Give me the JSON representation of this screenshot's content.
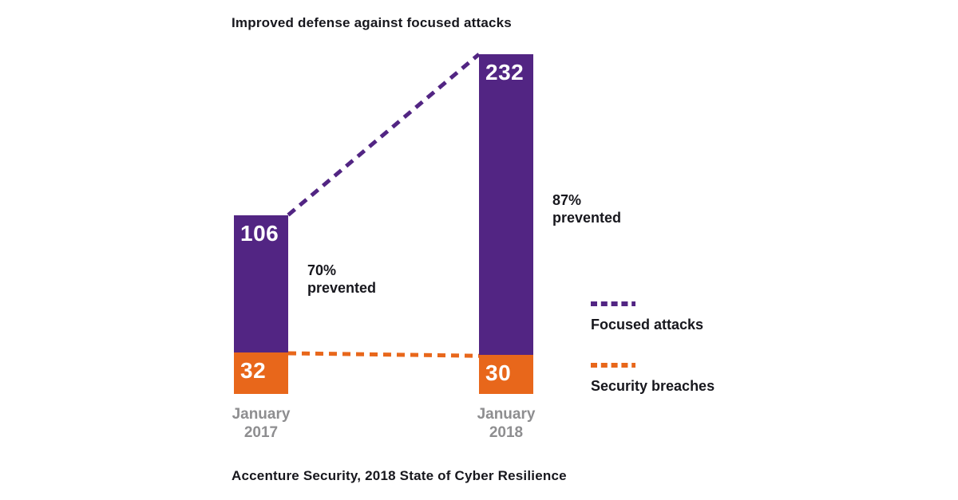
{
  "title": "Improved defense against focused attacks",
  "source_note": "Accenture Security, 2018 State of Cyber Resilience",
  "colors": {
    "focused_attacks": "#522583",
    "security_breaches": "#e8671b",
    "text": "#17171d",
    "axis_label": "#8e8e90",
    "value_label": "#ffffff",
    "background": "#ffffff"
  },
  "chart_data": {
    "type": "bar",
    "stacked": true,
    "title": "Improved defense against focused attacks",
    "categories": [
      "January\n2017",
      "January\n2018"
    ],
    "series": [
      {
        "name": "Focused attacks",
        "color": "#522583",
        "values": [
          106,
          232
        ]
      },
      {
        "name": "Security breaches",
        "color": "#e8671b",
        "values": [
          32,
          30
        ]
      }
    ],
    "annotations": [
      {
        "text": "70%\nprevented",
        "target": "January 2017"
      },
      {
        "text": "87%\nprevented",
        "target": "January 2018"
      }
    ],
    "legend_position": "right",
    "grid": false,
    "axes_hidden": true,
    "connector_style": "dashed lines join the tops of matching stacked segments between the two bars",
    "source": "Accenture Security, 2018 State of Cyber Resilience"
  },
  "legend": {
    "items": [
      {
        "label": "Focused attacks",
        "color": "#522583",
        "swatch": "dashed-line"
      },
      {
        "label": "Security breaches",
        "color": "#e8671b",
        "swatch": "dashed-line"
      }
    ]
  }
}
